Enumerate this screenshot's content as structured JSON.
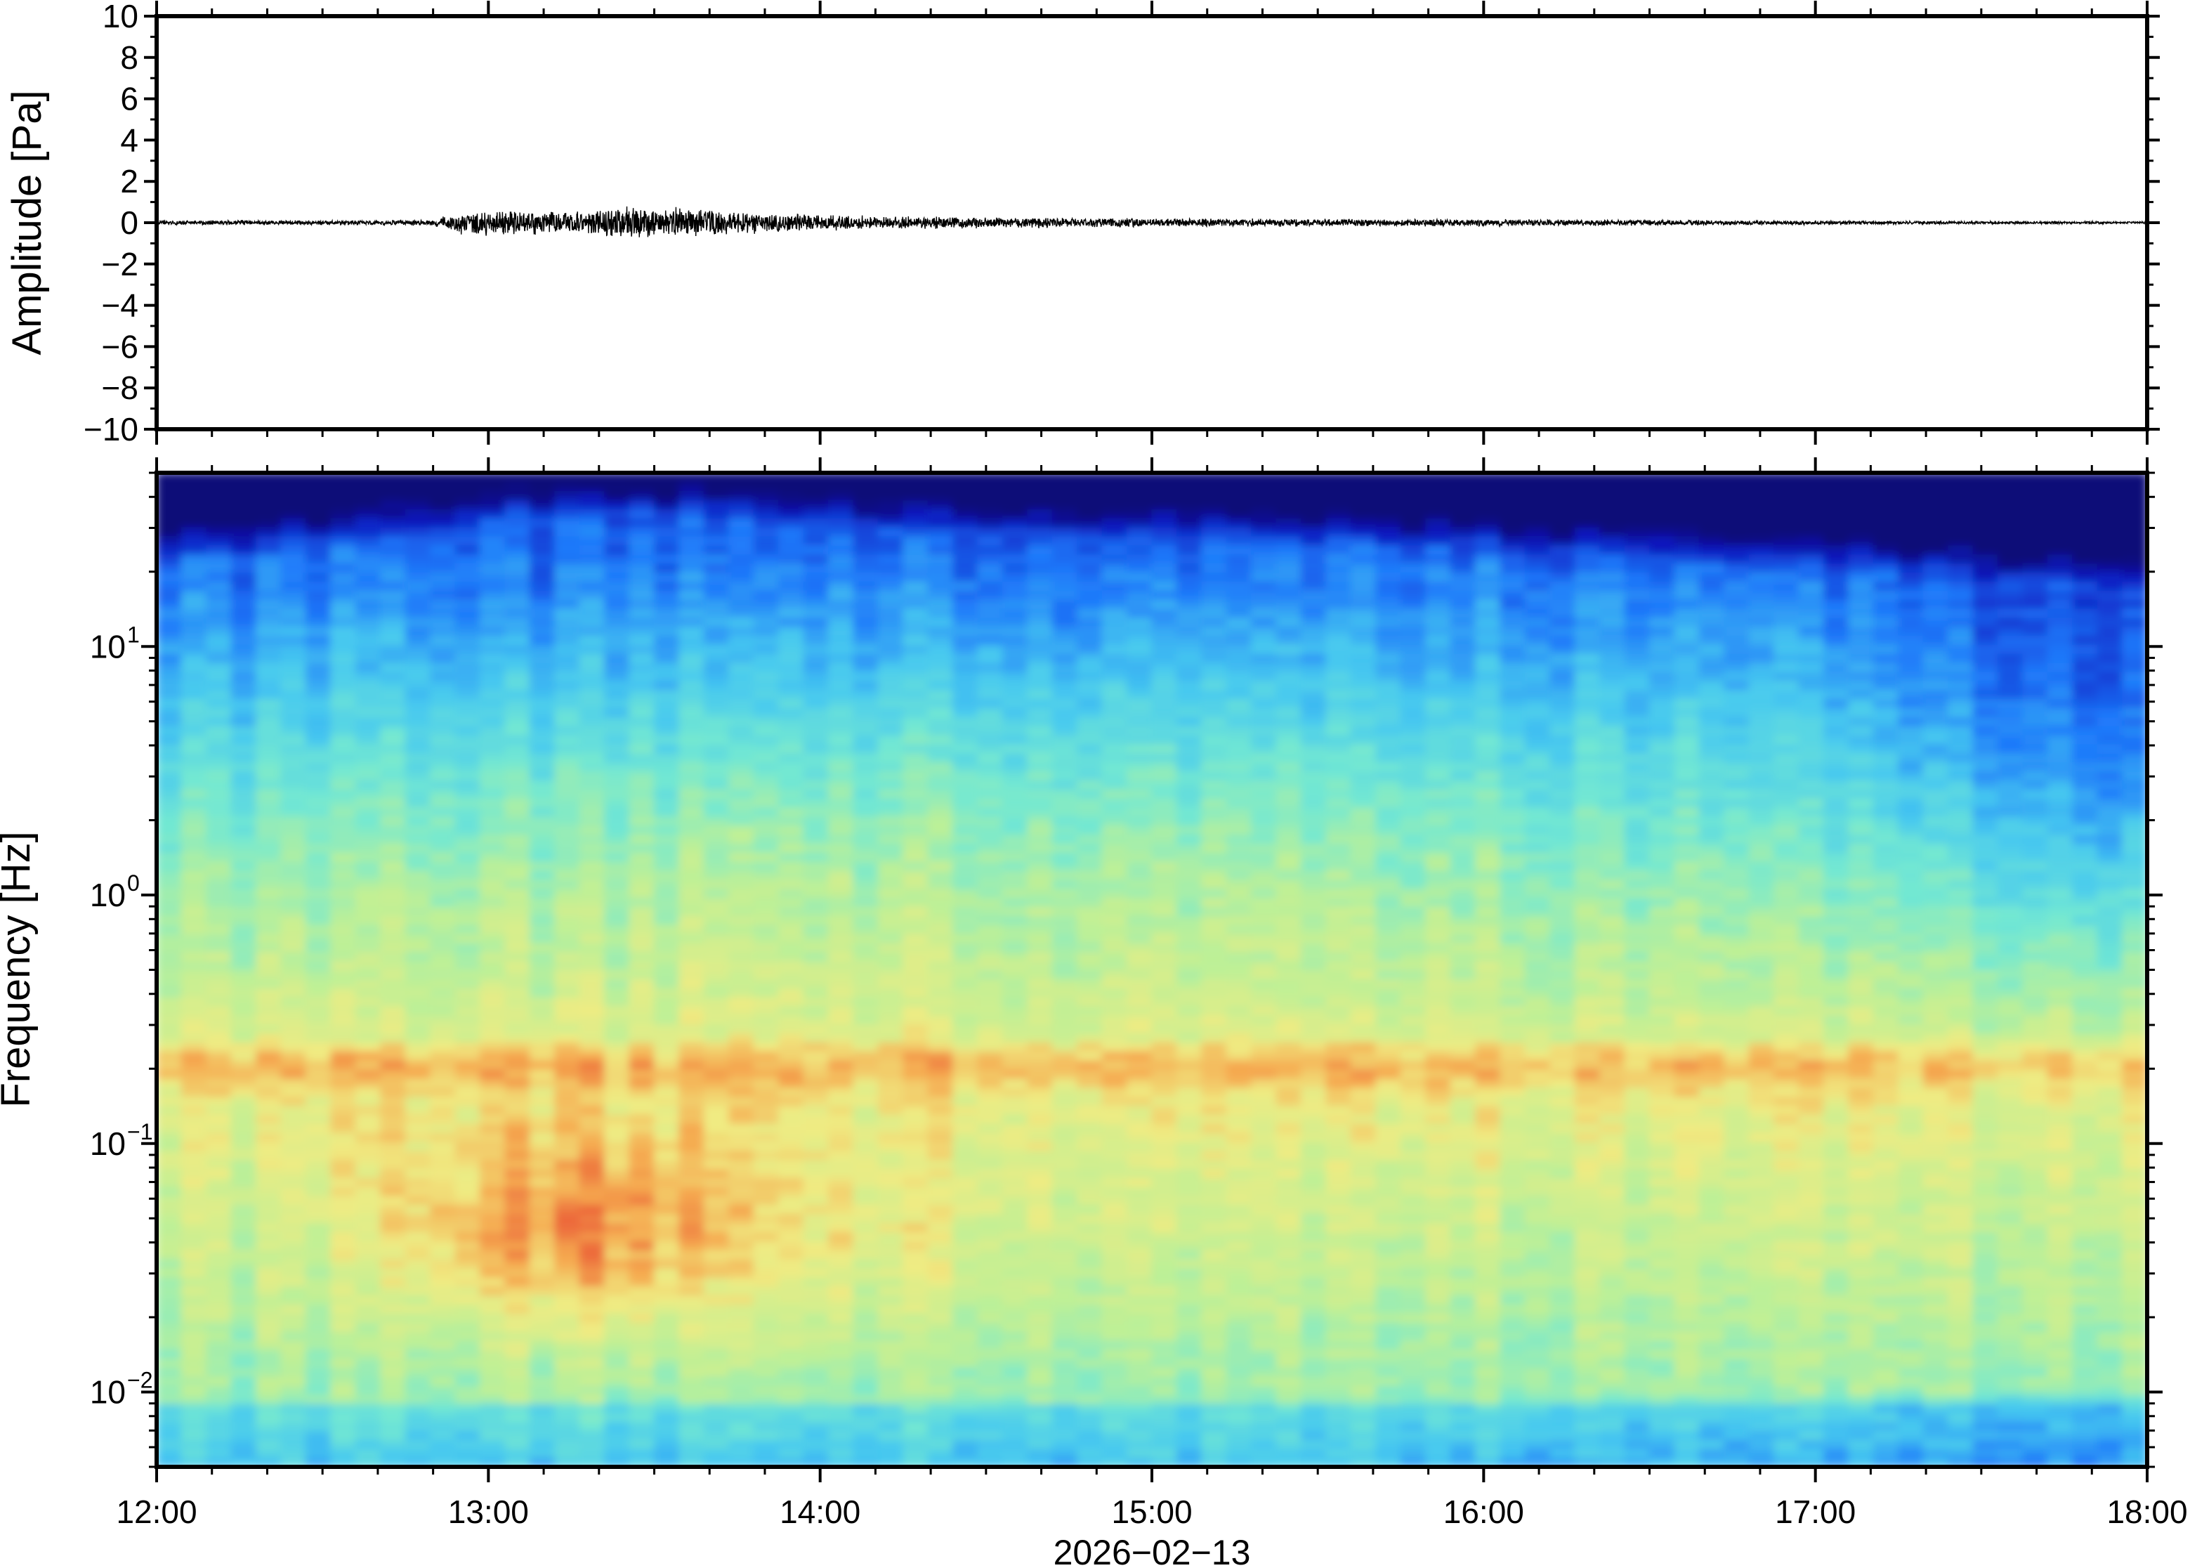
{
  "chart_data": [
    {
      "type": "line",
      "ylabel": "Amplitude [Pa]",
      "ylim": [
        -10,
        10
      ],
      "yticks": [
        10,
        8,
        6,
        4,
        2,
        0,
        -2,
        -4,
        -6,
        -8,
        -10
      ],
      "ytick_labels": [
        "10",
        "8",
        "6",
        "4",
        "2",
        "0",
        "−2",
        "−4",
        "−6",
        "−8",
        "−10"
      ],
      "xlim": [
        "2026-02-13 12:00",
        "2026-02-13 18:00"
      ],
      "series": [
        {
          "x": [
            "12:00",
            "12:30",
            "12:50",
            "12:55",
            "13:05",
            "13:15",
            "13:20",
            "13:30",
            "13:45",
            "14:00",
            "14:30",
            "15:00",
            "15:30",
            "16:00",
            "16:30",
            "17:00",
            "17:30",
            "18:00"
          ],
          "envelope": [
            0.12,
            0.12,
            0.15,
            0.6,
            0.7,
            0.6,
            0.75,
            0.85,
            0.6,
            0.4,
            0.3,
            0.22,
            0.2,
            0.18,
            0.15,
            0.1,
            0.08,
            0.06
          ]
        }
      ],
      "grid": false
    },
    {
      "type": "heatmap",
      "ylabel": "Frequency [Hz]",
      "yscale": "log",
      "ylim": [
        0.005,
        50
      ],
      "yticks": [
        0.01,
        0.1,
        1,
        10
      ],
      "ytick_labels": [
        {
          "base": "10",
          "exp": "−2"
        },
        {
          "base": "10",
          "exp": "−1"
        },
        {
          "base": "10",
          "exp": "0"
        },
        {
          "base": "10",
          "exp": "1"
        }
      ],
      "xlabel": "2026−02−13",
      "xlim": [
        "12:00",
        "18:00"
      ],
      "xtick_labels": [
        "12:00",
        "13:00",
        "14:00",
        "15:00",
        "16:00",
        "17:00",
        "18:00"
      ],
      "colormap": "jet",
      "colors": {
        "low": "#0b0a78",
        "mid_low": "#2a7fff",
        "mid": "#6fe8d8",
        "mid_high": "#eef08a",
        "high": "#f07a3a"
      },
      "features": [
        {
          "time": "12:50–13:30",
          "freq_hz": [
            0.02,
            0.1
          ],
          "level": "high"
        },
        {
          "time": "12:00–18:00",
          "freq_hz": [
            0.15,
            0.25
          ],
          "level": "mid_high"
        },
        {
          "time": "12:00–18:00",
          "freq_hz": [
            20,
            50
          ],
          "level": "low"
        },
        {
          "time": "17:00–18:00",
          "freq_hz": [
            0.005,
            0.012
          ],
          "level": "mid_low"
        }
      ],
      "grid": false
    }
  ]
}
